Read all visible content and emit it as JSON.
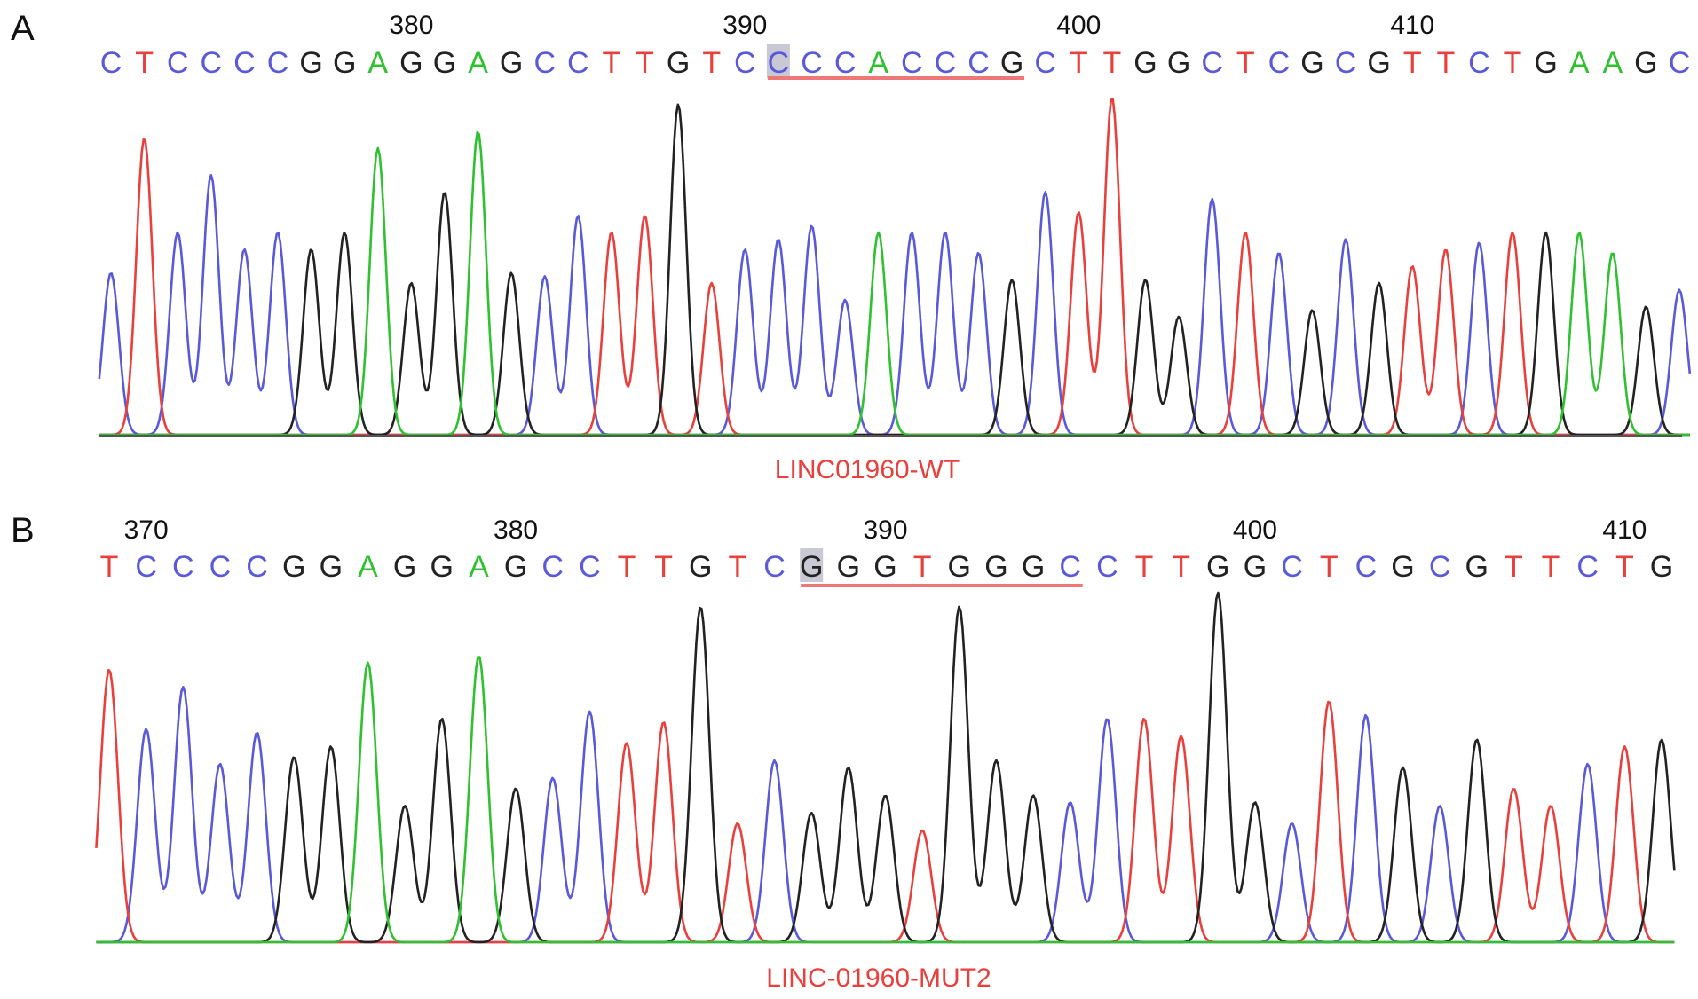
{
  "colors": {
    "A": "#2fc12f",
    "C": "#5a5ad8",
    "G": "#222222",
    "T": "#e8403c",
    "highlight": "#c9c9d6",
    "underline": "#ee7777",
    "caption": "#e8403c"
  },
  "chart_data": [
    {
      "type": "line",
      "panel": "A",
      "caption": "LINC01960-WT",
      "sequence": "CTCCCCGGAGGAGCCTTGTCCCCACCCGCTTGGCTCGCGTTCTGAAGC",
      "highlight_index": 20,
      "underline_range": [
        20,
        27
      ],
      "position_labels": [
        {
          "label": "380",
          "index": 9
        },
        {
          "label": "390",
          "index": 19
        },
        {
          "label": "400",
          "index": 29
        },
        {
          "label": "410",
          "index": 39
        }
      ],
      "peak_heights": [
        0.48,
        0.88,
        0.6,
        0.77,
        0.55,
        0.6,
        0.55,
        0.6,
        0.85,
        0.45,
        0.72,
        0.9,
        0.48,
        0.47,
        0.65,
        0.6,
        0.65,
        0.98,
        0.45,
        0.55,
        0.58,
        0.62,
        0.4,
        0.6,
        0.6,
        0.6,
        0.54,
        0.46,
        0.72,
        0.66,
        1.0,
        0.46,
        0.35,
        0.7,
        0.6,
        0.54,
        0.37,
        0.58,
        0.45,
        0.5,
        0.55,
        0.57,
        0.6,
        0.6,
        0.6,
        0.54,
        0.38,
        0.43
      ]
    },
    {
      "type": "line",
      "panel": "B",
      "caption": "LINC-01960-MUT2",
      "sequence": "TCCCCGGAGGAGCCTTGTCGGGTGGGCCTTGGCTCGCGTTCTG",
      "highlight_index": 19,
      "underline_range": [
        19,
        26
      ],
      "position_labels": [
        {
          "label": "370",
          "index": 1
        },
        {
          "label": "380",
          "index": 11
        },
        {
          "label": "390",
          "index": 21
        },
        {
          "label": "400",
          "index": 31
        },
        {
          "label": "410",
          "index": 41
        }
      ],
      "peak_heights": [
        0.78,
        0.61,
        0.73,
        0.51,
        0.6,
        0.53,
        0.56,
        0.8,
        0.39,
        0.64,
        0.82,
        0.44,
        0.47,
        0.66,
        0.57,
        0.63,
        0.96,
        0.34,
        0.52,
        0.37,
        0.5,
        0.42,
        0.32,
        0.96,
        0.52,
        0.42,
        0.4,
        0.64,
        0.64,
        0.59,
        1.0,
        0.4,
        0.34,
        0.69,
        0.65,
        0.5,
        0.39,
        0.58,
        0.44,
        0.39,
        0.51,
        0.56,
        0.58
      ]
    }
  ]
}
